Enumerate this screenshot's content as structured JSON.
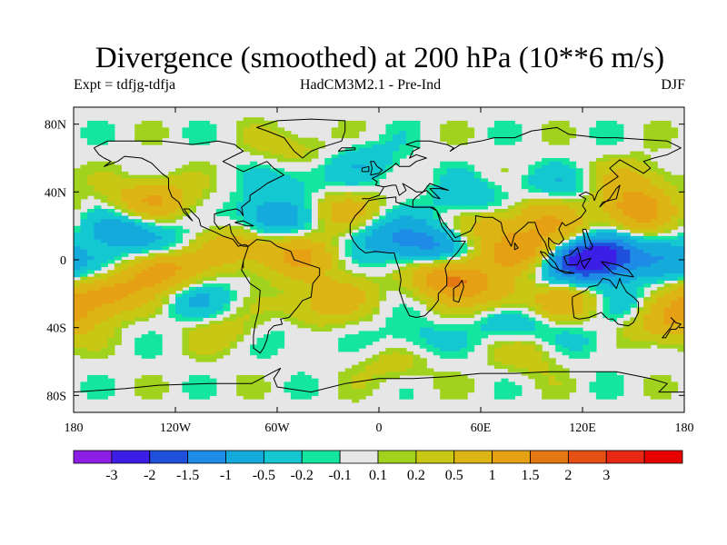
{
  "header": {
    "title": "Divergence (smoothed) at 200 hPa (10**6 m/s)",
    "experiment": "Expt = tdfjg-tdfja",
    "model": "HadCM3M2.1 - Pre-Ind",
    "season": "DJF"
  },
  "map": {
    "projection": "equirectangular",
    "lon_range": [
      -180,
      180
    ],
    "lat_range": [
      -90,
      90
    ],
    "missing_color": "#e6e6e6",
    "lon_ticks": [
      {
        "value": -180,
        "label": "180"
      },
      {
        "value": -120,
        "label": "120W"
      },
      {
        "value": -60,
        "label": "60W"
      },
      {
        "value": 0,
        "label": "0"
      },
      {
        "value": 60,
        "label": "60E"
      },
      {
        "value": 120,
        "label": "120E"
      },
      {
        "value": 180,
        "label": "180"
      }
    ],
    "lat_ticks": [
      {
        "value": 80,
        "label": "80N"
      },
      {
        "value": 40,
        "label": "40N"
      },
      {
        "value": 0,
        "label": "0"
      },
      {
        "value": -40,
        "label": "40S"
      },
      {
        "value": -80,
        "label": "80S"
      }
    ]
  },
  "colorbar": {
    "colors": [
      "#8c1ee6",
      "#3c1ee6",
      "#1e50dc",
      "#1e8ce6",
      "#14aadc",
      "#14c8d2",
      "#14e6a0",
      "#e6e6e6",
      "#a0d21e",
      "#c8c814",
      "#dcb414",
      "#e6a014",
      "#e67814",
      "#e65014",
      "#e62814",
      "#e60000"
    ],
    "labels": [
      "-3",
      "-2",
      "-1.5",
      "-1",
      "-0.5",
      "-0.2",
      "-0.1",
      "0.1",
      "0.2",
      "0.5",
      "1",
      "1.5",
      "2",
      "3"
    ]
  },
  "field_features": [
    {
      "lon": 128,
      "lat": 3,
      "value": -3.1
    },
    {
      "lon": 108,
      "lat": -5,
      "value": -1.0
    },
    {
      "lon": 32,
      "lat": 8,
      "value": -1.1
    },
    {
      "lon": 4,
      "lat": 14,
      "value": -0.8
    },
    {
      "lon": -64,
      "lat": 24,
      "value": -0.9
    },
    {
      "lon": -148,
      "lat": 18,
      "value": -0.8
    },
    {
      "lon": -164,
      "lat": -6,
      "value": -0.7
    },
    {
      "lon": -128,
      "lat": 6,
      "value": -0.6
    },
    {
      "lon": 170,
      "lat": 0,
      "value": -0.6
    },
    {
      "lon": 150,
      "lat": -28,
      "value": -0.6
    },
    {
      "lon": -106,
      "lat": -24,
      "value": -0.5
    },
    {
      "lon": -48,
      "lat": 48,
      "value": -0.4
    },
    {
      "lon": -8,
      "lat": 58,
      "value": -0.4
    },
    {
      "lon": 54,
      "lat": 34,
      "value": -0.6
    },
    {
      "lon": 104,
      "lat": 42,
      "value": -0.5
    },
    {
      "lon": 78,
      "lat": -36,
      "value": -0.6
    },
    {
      "lon": 18,
      "lat": -48,
      "value": -0.4
    },
    {
      "lon": 136,
      "lat": 26,
      "value": -0.7
    },
    {
      "lon": 120,
      "lat": -48,
      "value": -0.3
    },
    {
      "lon": -52,
      "lat": -44,
      "value": -0.3
    },
    {
      "lon": 148,
      "lat": 28,
      "value": 1.7
    },
    {
      "lon": 88,
      "lat": 4,
      "value": 1.4
    },
    {
      "lon": 42,
      "lat": -10,
      "value": 1.6
    },
    {
      "lon": -130,
      "lat": -5,
      "value": 1.6
    },
    {
      "lon": -160,
      "lat": -18,
      "value": 1.2
    },
    {
      "lon": -134,
      "lat": 35,
      "value": 1.1
    },
    {
      "lon": -48,
      "lat": 2,
      "value": 1.0
    },
    {
      "lon": -86,
      "lat": 8,
      "value": 0.9
    },
    {
      "lon": 112,
      "lat": -24,
      "value": 0.9
    },
    {
      "lon": 118,
      "lat": 12,
      "value": 1.0
    },
    {
      "lon": 62,
      "lat": 20,
      "value": 0.8
    },
    {
      "lon": 100,
      "lat": 28,
      "value": 0.8
    },
    {
      "lon": 70,
      "lat": -22,
      "value": 0.7
    },
    {
      "lon": -20,
      "lat": 28,
      "value": 0.7
    },
    {
      "lon": 164,
      "lat": -38,
      "value": 0.8
    },
    {
      "lon": -24,
      "lat": -20,
      "value": 0.5
    },
    {
      "lon": -50,
      "lat": 66,
      "value": 0.4
    },
    {
      "lon": -180,
      "lat": -28,
      "value": 0.8
    },
    {
      "lon": -90,
      "lat": -42,
      "value": 0.4
    },
    {
      "lon": 150,
      "lat": 46,
      "value": 0.6
    },
    {
      "lon": -40,
      "lat": -30,
      "value": 0.5
    },
    {
      "lon": 10,
      "lat": -60,
      "value": 0.4
    },
    {
      "lon": 90,
      "lat": -55,
      "value": 0.4
    }
  ]
}
